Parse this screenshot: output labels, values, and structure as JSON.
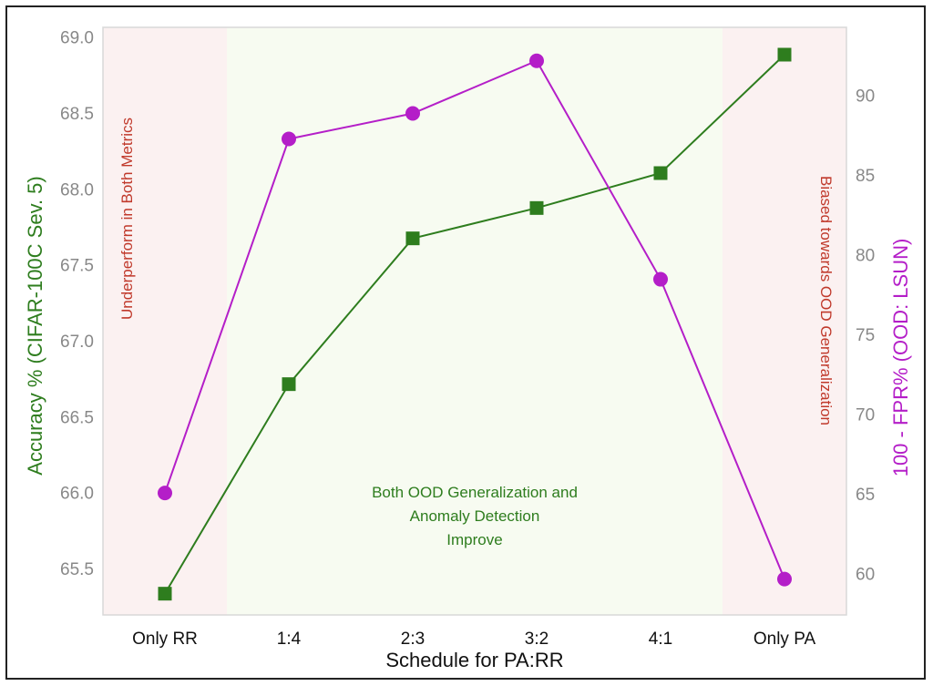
{
  "chart_data": {
    "type": "line",
    "xlabel": "Schedule for PA:RR",
    "categories": [
      "Only RR",
      "1:4",
      "2:3",
      "3:2",
      "4:1",
      "Only PA"
    ],
    "series": [
      {
        "name": "Accuracy % (CIFAR-100C Sev. 5)",
        "axis": "left",
        "marker": "square",
        "color": "#2e7d1e",
        "values": [
          65.34,
          66.72,
          67.68,
          67.88,
          68.11,
          68.89
        ]
      },
      {
        "name": "100 - FPR% (OOD: LSUN)",
        "axis": "right",
        "marker": "circle",
        "color": "#b41ec8",
        "values": [
          65.1,
          87.3,
          88.9,
          92.2,
          78.5,
          59.7
        ]
      }
    ],
    "y_left": {
      "label": "Accuracy % (CIFAR-100C Sev. 5)",
      "ticks": [
        "65.5",
        "66.0",
        "66.5",
        "67.0",
        "67.5",
        "68.0",
        "68.5",
        "69.0"
      ],
      "tick_values": [
        65.5,
        66.0,
        66.5,
        67.0,
        67.5,
        68.0,
        68.5,
        69.0
      ],
      "range": [
        65.2,
        69.07
      ],
      "color": "#2e7d1e"
    },
    "y_right": {
      "label": "100 - FPR% (OOD: LSUN)",
      "ticks": [
        "60",
        "65",
        "70",
        "75",
        "80",
        "85",
        "90"
      ],
      "tick_values": [
        60,
        65,
        70,
        75,
        80,
        85,
        90
      ],
      "range": [
        57.45,
        94.3
      ],
      "color": "#b41ec8"
    },
    "regions": [
      {
        "name": "underperform",
        "from_index": -0.5,
        "to_index": 0.5,
        "color": "#fbf1f1",
        "label": "Underperform in Both Metrics",
        "label_color": "#c0392b"
      },
      {
        "name": "improve",
        "from_index": 0.5,
        "to_index": 4.5,
        "color": "#f7fbf1",
        "label_lines": [
          "Both OOD Generalization and",
          "Anomaly Detection",
          "Improve"
        ],
        "label_color": "#2e7d1e"
      },
      {
        "name": "biased",
        "from_index": 4.5,
        "to_index": 5.5,
        "color": "#fbf1f1",
        "label": "Biased towards OOD Generalization",
        "label_color": "#c0392b"
      }
    ],
    "grid": false
  }
}
